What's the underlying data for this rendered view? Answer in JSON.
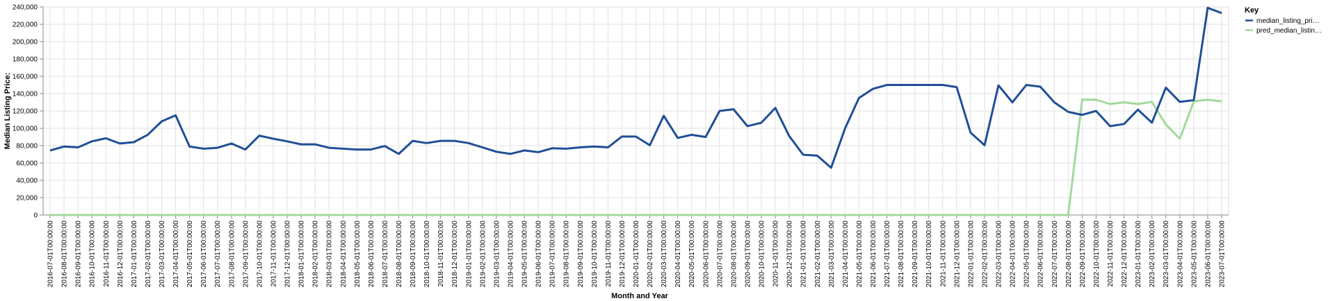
{
  "chart_data": {
    "type": "line",
    "xlabel": "Month and Year",
    "ylabel": "Median Listing Price:",
    "ylim": [
      0,
      240000
    ],
    "yticks": [
      "0",
      "20,000",
      "40,000",
      "60,000",
      "80,000",
      "100,000",
      "120,000",
      "140,000",
      "160,000",
      "180,000",
      "200,000",
      "220,000",
      "240,000"
    ],
    "grid": true,
    "legend_position": "right",
    "legend_title": "Key",
    "x": [
      "2016-07-01T00:00:00",
      "2016-08-01T00:00:00",
      "2016-09-01T00:00:00",
      "2016-10-01T00:00:00",
      "2016-11-01T00:00:00",
      "2016-12-01T00:00:00",
      "2017-01-01T00:00:00",
      "2017-02-01T00:00:00",
      "2017-03-01T00:00:00",
      "2017-04-01T00:00:00",
      "2017-05-01T00:00:00",
      "2017-06-01T00:00:00",
      "2017-07-01T00:00:00",
      "2017-08-01T00:00:00",
      "2017-09-01T00:00:00",
      "2017-10-01T00:00:00",
      "2017-11-01T00:00:00",
      "2017-12-01T00:00:00",
      "2018-01-01T00:00:00",
      "2018-02-01T00:00:00",
      "2018-03-01T00:00:00",
      "2018-04-01T00:00:00",
      "2018-05-01T00:00:00",
      "2018-06-01T00:00:00",
      "2018-07-01T00:00:00",
      "2018-08-01T00:00:00",
      "2018-09-01T00:00:00",
      "2018-10-01T00:00:00",
      "2018-11-01T00:00:00",
      "2018-12-01T00:00:00",
      "2019-01-01T00:00:00",
      "2019-02-01T00:00:00",
      "2019-03-01T00:00:00",
      "2019-04-01T00:00:00",
      "2019-05-01T00:00:00",
      "2019-06-01T00:00:00",
      "2019-07-01T00:00:00",
      "2019-08-01T00:00:00",
      "2019-09-01T00:00:00",
      "2019-10-01T00:00:00",
      "2019-11-01T00:00:00",
      "2019-12-01T00:00:00",
      "2020-01-01T00:00:00",
      "2020-02-01T00:00:00",
      "2020-03-01T00:00:00",
      "2020-04-01T00:00:00",
      "2020-05-01T00:00:00",
      "2020-06-01T00:00:00",
      "2020-07-01T00:00:00",
      "2020-08-01T00:00:00",
      "2020-09-01T00:00:00",
      "2020-10-01T00:00:00",
      "2020-11-01T00:00:00",
      "2020-12-01T00:00:00",
      "2021-01-01T00:00:00",
      "2021-02-01T00:00:00",
      "2021-03-01T00:00:00",
      "2021-04-01T00:00:00",
      "2021-05-01T00:00:00",
      "2021-06-01T00:00:00",
      "2021-07-01T00:00:00",
      "2021-08-01T00:00:00",
      "2021-09-01T00:00:00",
      "2021-10-01T00:00:00",
      "2021-11-01T00:00:00",
      "2021-12-01T00:00:00",
      "2022-01-01T00:00:00",
      "2022-02-01T00:00:00",
      "2022-03-01T00:00:00",
      "2022-04-01T00:00:00",
      "2022-05-01T00:00:00",
      "2022-06-01T00:00:00",
      "2022-07-01T00:00:00",
      "2022-08-01T00:00:00",
      "2022-09-01T00:00:00",
      "2022-10-01T00:00:00",
      "2022-11-01T00:00:00",
      "2022-12-01T00:00:00",
      "2023-01-01T00:00:00",
      "2023-02-01T00:00:00",
      "2023-03-01T00:00:00",
      "2023-04-01T00:00:00",
      "2023-05-01T00:00:00",
      "2023-06-01T00:00:00",
      "2023-07-01T00:00:00"
    ],
    "series": [
      {
        "name": "median_listing_pri…",
        "color": "#1f4e96",
        "values": [
          74500,
          79000,
          78000,
          85000,
          88500,
          82500,
          84000,
          92500,
          108000,
          115000,
          79000,
          76500,
          77500,
          82500,
          75500,
          91500,
          88000,
          85000,
          81500,
          81500,
          77500,
          76500,
          75500,
          75500,
          79500,
          70500,
          85500,
          83000,
          85500,
          85500,
          83000,
          78000,
          73000,
          70500,
          74500,
          72500,
          77000,
          76500,
          78000,
          79000,
          78000,
          90500,
          90500,
          80500,
          114500,
          89000,
          92500,
          90000,
          120000,
          122000,
          102500,
          106500,
          123500,
          91000,
          69500,
          68500,
          54500,
          100000,
          135000,
          145500,
          150000,
          150000,
          150000,
          150000,
          150000,
          147500,
          95000,
          80500,
          149500,
          130000,
          150000,
          148000,
          130000,
          119000,
          115500,
          120000,
          102500,
          105000,
          121500,
          106500,
          147000,
          130500,
          132500,
          239000,
          233000
        ]
      },
      {
        "name": "pred_median_listin…",
        "color": "#a1d99b",
        "values": [
          0,
          0,
          0,
          0,
          0,
          0,
          0,
          0,
          0,
          0,
          0,
          0,
          0,
          0,
          0,
          0,
          0,
          0,
          0,
          0,
          0,
          0,
          0,
          0,
          0,
          0,
          0,
          0,
          0,
          0,
          0,
          0,
          0,
          0,
          0,
          0,
          0,
          0,
          0,
          0,
          0,
          0,
          0,
          0,
          0,
          0,
          0,
          0,
          0,
          0,
          0,
          0,
          0,
          0,
          0,
          0,
          0,
          0,
          0,
          0,
          0,
          0,
          0,
          0,
          0,
          0,
          0,
          0,
          0,
          0,
          0,
          0,
          0,
          0,
          133000,
          133000,
          128000,
          130000,
          128000,
          130500,
          104500,
          88000,
          131000,
          133000,
          131000
        ]
      }
    ]
  }
}
